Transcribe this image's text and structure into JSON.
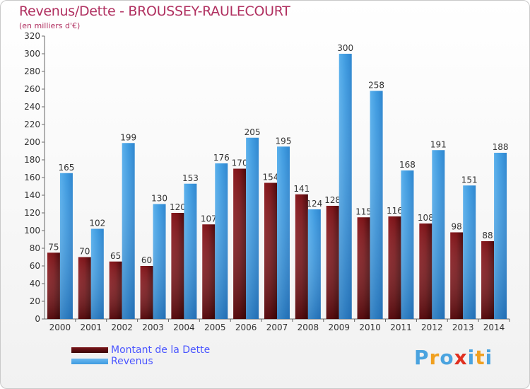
{
  "title": "Revenus/Dette - BROUSSEY-RAULECOURT",
  "subtitle": "(en milliers d'€)",
  "colors": {
    "title": "#b03060",
    "legend_text": "#4a55ff",
    "dette": "#7a1418",
    "revenus": "#3f9be0"
  },
  "chart_data": {
    "type": "bar",
    "categories": [
      "2000",
      "2001",
      "2002",
      "2003",
      "2004",
      "2005",
      "2006",
      "2007",
      "2008",
      "2009",
      "2010",
      "2011",
      "2012",
      "2013",
      "2014"
    ],
    "series": [
      {
        "name": "Montant de la Dette",
        "values": [
          75,
          70,
          65,
          60,
          120,
          107,
          170,
          154,
          141,
          128,
          115,
          116,
          108,
          98,
          88
        ]
      },
      {
        "name": "Revenus",
        "values": [
          165,
          102,
          199,
          130,
          153,
          176,
          205,
          195,
          124,
          300,
          258,
          168,
          191,
          151,
          188
        ]
      }
    ],
    "ylim": [
      0,
      320
    ],
    "yticks": [
      0,
      20,
      40,
      60,
      80,
      100,
      120,
      140,
      160,
      180,
      200,
      220,
      240,
      260,
      280,
      300,
      320
    ],
    "grid": false,
    "legend_position": "bottom-left"
  },
  "legend": {
    "dette_label": "Montant de la Dette",
    "revenus_label": "Revenus"
  },
  "logo": {
    "letters": [
      "P",
      "r",
      "o",
      "x",
      "i",
      "t",
      "i"
    ],
    "colors": [
      "#4aa3df",
      "#f0a020",
      "#4aa3df",
      "#e03020",
      "#4aa3df",
      "#f0a020",
      "#4aa3df"
    ]
  }
}
